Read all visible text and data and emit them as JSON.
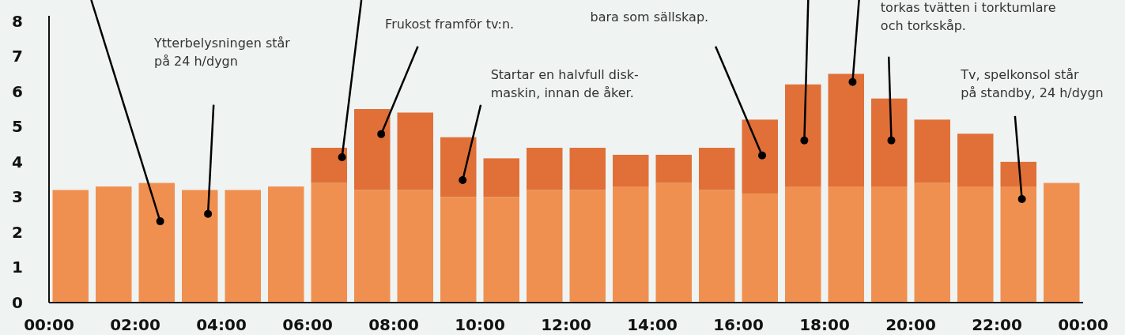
{
  "chart_data": {
    "type": "bar",
    "stacked": true,
    "x": [
      0.5,
      1.5,
      2.5,
      3.5,
      4.5,
      5.5,
      6.5,
      7.5,
      8.5,
      9.5,
      10.5,
      11.5,
      12.5,
      13.5,
      14.5,
      15.5,
      16.5,
      17.5,
      18.5,
      19.5,
      20.5,
      21.5,
      22.5,
      23.5
    ],
    "series": [
      {
        "color": "#f09050",
        "values": [
          3.2,
          3.3,
          3.4,
          3.2,
          3.2,
          3.3,
          3.4,
          3.2,
          3.2,
          3.0,
          3.0,
          3.2,
          3.2,
          3.3,
          3.4,
          3.2,
          3.1,
          3.3,
          3.3,
          3.3,
          3.4,
          3.3,
          3.3,
          3.4
        ]
      },
      {
        "color": "#e07038",
        "values": [
          0,
          0,
          0,
          0,
          0,
          0,
          1.0,
          2.3,
          2.2,
          1.7,
          1.1,
          1.2,
          1.2,
          0.9,
          0.8,
          1.2,
          2.1,
          2.9,
          3.2,
          2.5,
          1.8,
          1.5,
          0.7,
          0
        ]
      }
    ],
    "xlim": [
      0,
      24
    ],
    "xticks": [
      {
        "value": 0,
        "label": "00:00"
      },
      {
        "value": 2,
        "label": "02:00"
      },
      {
        "value": 4,
        "label": "04:00"
      },
      {
        "value": 6,
        "label": "06:00"
      },
      {
        "value": 8,
        "label": "08:00"
      },
      {
        "value": 10,
        "label": "10:00"
      },
      {
        "value": 12,
        "label": "12:00"
      },
      {
        "value": 14,
        "label": "14:00"
      },
      {
        "value": 16,
        "label": "16:00"
      },
      {
        "value": 18,
        "label": "18:00"
      },
      {
        "value": 20,
        "label": "20:00"
      },
      {
        "value": 22,
        "label": "22:00"
      },
      {
        "value": 24,
        "label": "00:00"
      }
    ],
    "ylim": [
      0,
      8.15
    ],
    "yticks": [
      0,
      1,
      2,
      3,
      4,
      5,
      6,
      7,
      8
    ],
    "grid": false,
    "annotations": [
      "Ytterbelysningen står\npå 24 h/dygn",
      "Frukost framför tv:n.",
      "Startar en halvfull disk-\nmaskin, innan de åker.",
      "bara som sällskap.",
      "torkas tvätten i torktumlare\noch torkskåp.",
      "Tv, spelkonsol står\npå standby, 24 h/dygn"
    ]
  }
}
